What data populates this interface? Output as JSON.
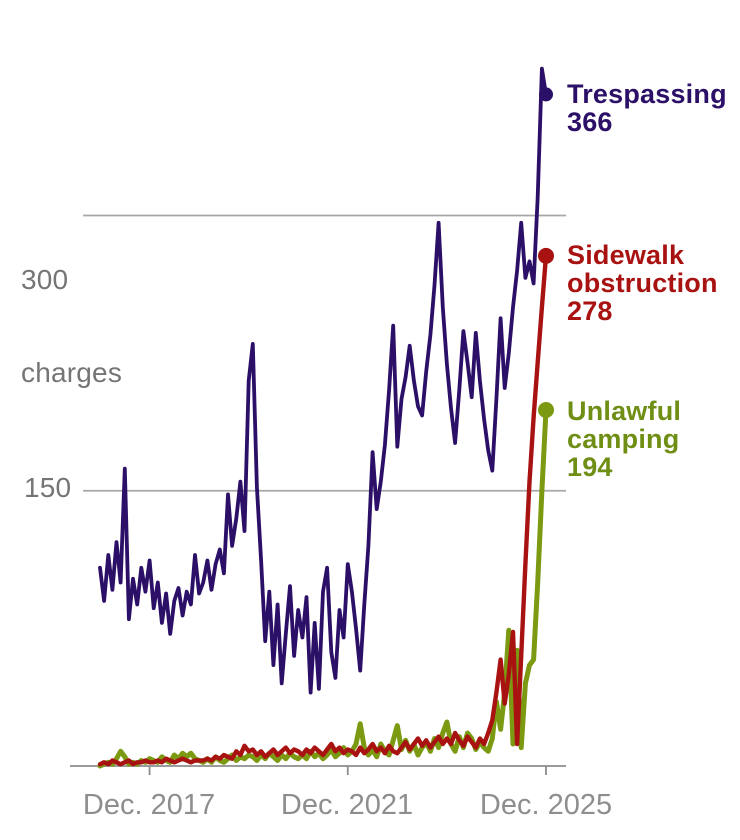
{
  "chart_data": {
    "type": "line",
    "title": "",
    "x": {
      "start": "2016-12",
      "end": "2025-12",
      "step": "1 month",
      "tick_labels": [
        "Dec. 2017",
        "Dec. 2021",
        "Dec. 2025"
      ],
      "tick_month_index": [
        12,
        60,
        108
      ]
    },
    "y": {
      "tick_values": [
        150,
        300
      ],
      "tick_labels": [
        "150",
        "300"
      ],
      "unit_label": "charges",
      "range": [
        0,
        385
      ],
      "gridlines": true
    },
    "legend_position": "right-of-line-ends",
    "colors": {
      "gridline": "#a7a7a7",
      "axis": "#8d8d8d",
      "y_label_text": "#757575",
      "x_label_text": "#8e8e8e"
    },
    "series": [
      {
        "name": "Trespassing",
        "color": "#2c1068",
        "end_label_value": "366",
        "values": [
          108,
          90,
          115,
          96,
          122,
          100,
          162,
          80,
          102,
          88,
          108,
          95,
          112,
          86,
          100,
          78,
          94,
          72,
          90,
          97,
          82,
          95,
          88,
          115,
          94,
          100,
          112,
          96,
          110,
          118,
          105,
          148,
          120,
          135,
          155,
          128,
          210,
          230,
          152,
          112,
          68,
          95,
          55,
          88,
          45,
          72,
          98,
          60,
          85,
          70,
          92,
          40,
          78,
          42,
          95,
          108,
          62,
          48,
          85,
          70,
          110,
          95,
          75,
          52,
          88,
          120,
          171,
          140,
          155,
          175,
          205,
          240,
          174,
          200,
          212,
          229,
          210,
          196,
          191,
          215,
          235,
          262,
          296,
          250,
          219,
          195,
          176,
          205,
          237,
          220,
          201,
          236,
          210,
          189,
          172,
          161,
          200,
          244,
          206,
          225,
          250,
          270,
          296,
          266,
          275,
          263,
          310,
          380,
          366
        ]
      },
      {
        "name": "Sidewalk obstruction",
        "color": "#a81312",
        "end_label_value": "278",
        "values": [
          1,
          2,
          1,
          3,
          2,
          1,
          2,
          3,
          1,
          2,
          2,
          3,
          2,
          2,
          3,
          2,
          4,
          3,
          2,
          3,
          4,
          3,
          2,
          3,
          3,
          3,
          4,
          3,
          5,
          4,
          6,
          5,
          4,
          8,
          6,
          11,
          8,
          9,
          6,
          8,
          5,
          7,
          9,
          6,
          8,
          10,
          7,
          9,
          8,
          6,
          9,
          7,
          10,
          8,
          6,
          9,
          12,
          8,
          10,
          7,
          9,
          8,
          6,
          10,
          7,
          9,
          12,
          8,
          10,
          7,
          11,
          8,
          7,
          10,
          13,
          9,
          12,
          15,
          11,
          14,
          10,
          13,
          16,
          12,
          15,
          12,
          18,
          14,
          11,
          16,
          13,
          10,
          15,
          12,
          18,
          25,
          40,
          58,
          34,
          50,
          73,
          12,
          60,
          110,
          155,
          190,
          220,
          250,
          278
        ]
      },
      {
        "name": "Unlawful camping",
        "color": "#7b9a12",
        "end_label_value": "194",
        "values": [
          0,
          1,
          2,
          1,
          4,
          8,
          5,
          1,
          2,
          1,
          3,
          2,
          4,
          3,
          2,
          5,
          3,
          2,
          6,
          4,
          7,
          5,
          7,
          4,
          3,
          2,
          4,
          2,
          5,
          3,
          2,
          4,
          6,
          3,
          5,
          4,
          6,
          5,
          3,
          6,
          4,
          7,
          5,
          3,
          6,
          4,
          7,
          5,
          4,
          6,
          4,
          8,
          5,
          7,
          4,
          6,
          9,
          5,
          7,
          10,
          6,
          8,
          12,
          23,
          10,
          6,
          9,
          5,
          12,
          8,
          6,
          14,
          22,
          9,
          14,
          8,
          12,
          6,
          10,
          13,
          8,
          15,
          10,
          18,
          24,
          12,
          8,
          16,
          10,
          18,
          15,
          9,
          13,
          10,
          8,
          15,
          35,
          20,
          40,
          74,
          12,
          63,
          10,
          45,
          55,
          58,
          100,
          150,
          194
        ]
      }
    ]
  }
}
